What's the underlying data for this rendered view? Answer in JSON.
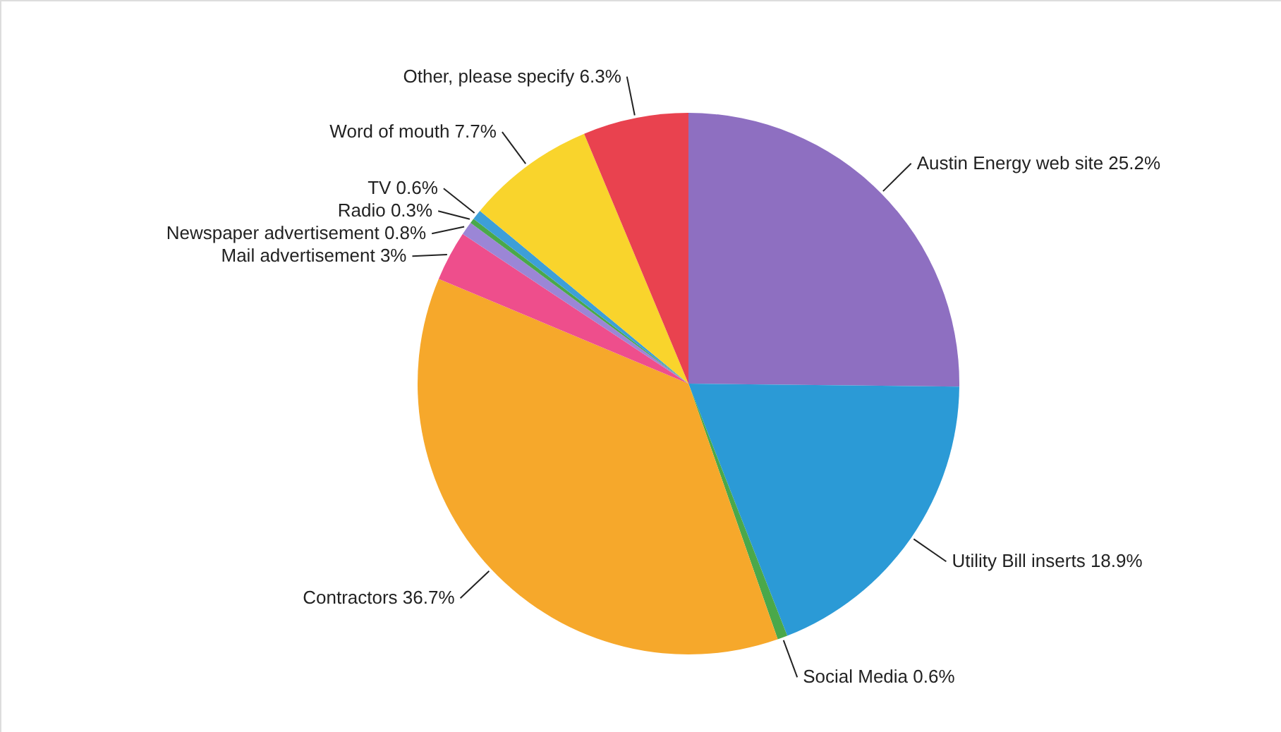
{
  "chart_data": {
    "type": "pie",
    "categories": [
      "Austin Energy web site",
      "Utility Bill inserts",
      "Social Media",
      "Contractors",
      "Mail advertisement",
      "Newspaper advertisement",
      "Radio",
      "TV",
      "Word of mouth",
      "Other, please specify"
    ],
    "values": [
      25.2,
      18.9,
      0.6,
      36.7,
      3,
      0.8,
      0.3,
      0.6,
      7.7,
      6.3
    ],
    "value_labels": [
      "25.2%",
      "18.9%",
      "0.6%",
      "36.7%",
      "3%",
      "0.8%",
      "0.3%",
      "0.6%",
      "7.7%",
      "6.3%"
    ],
    "colors": [
      "#8e6fc1",
      "#2b9ad6",
      "#4aa84a",
      "#f6a82b",
      "#ee4e8c",
      "#9b86d6",
      "#4aa84a",
      "#3d9fd8",
      "#f9d42c",
      "#e9424f"
    ]
  }
}
